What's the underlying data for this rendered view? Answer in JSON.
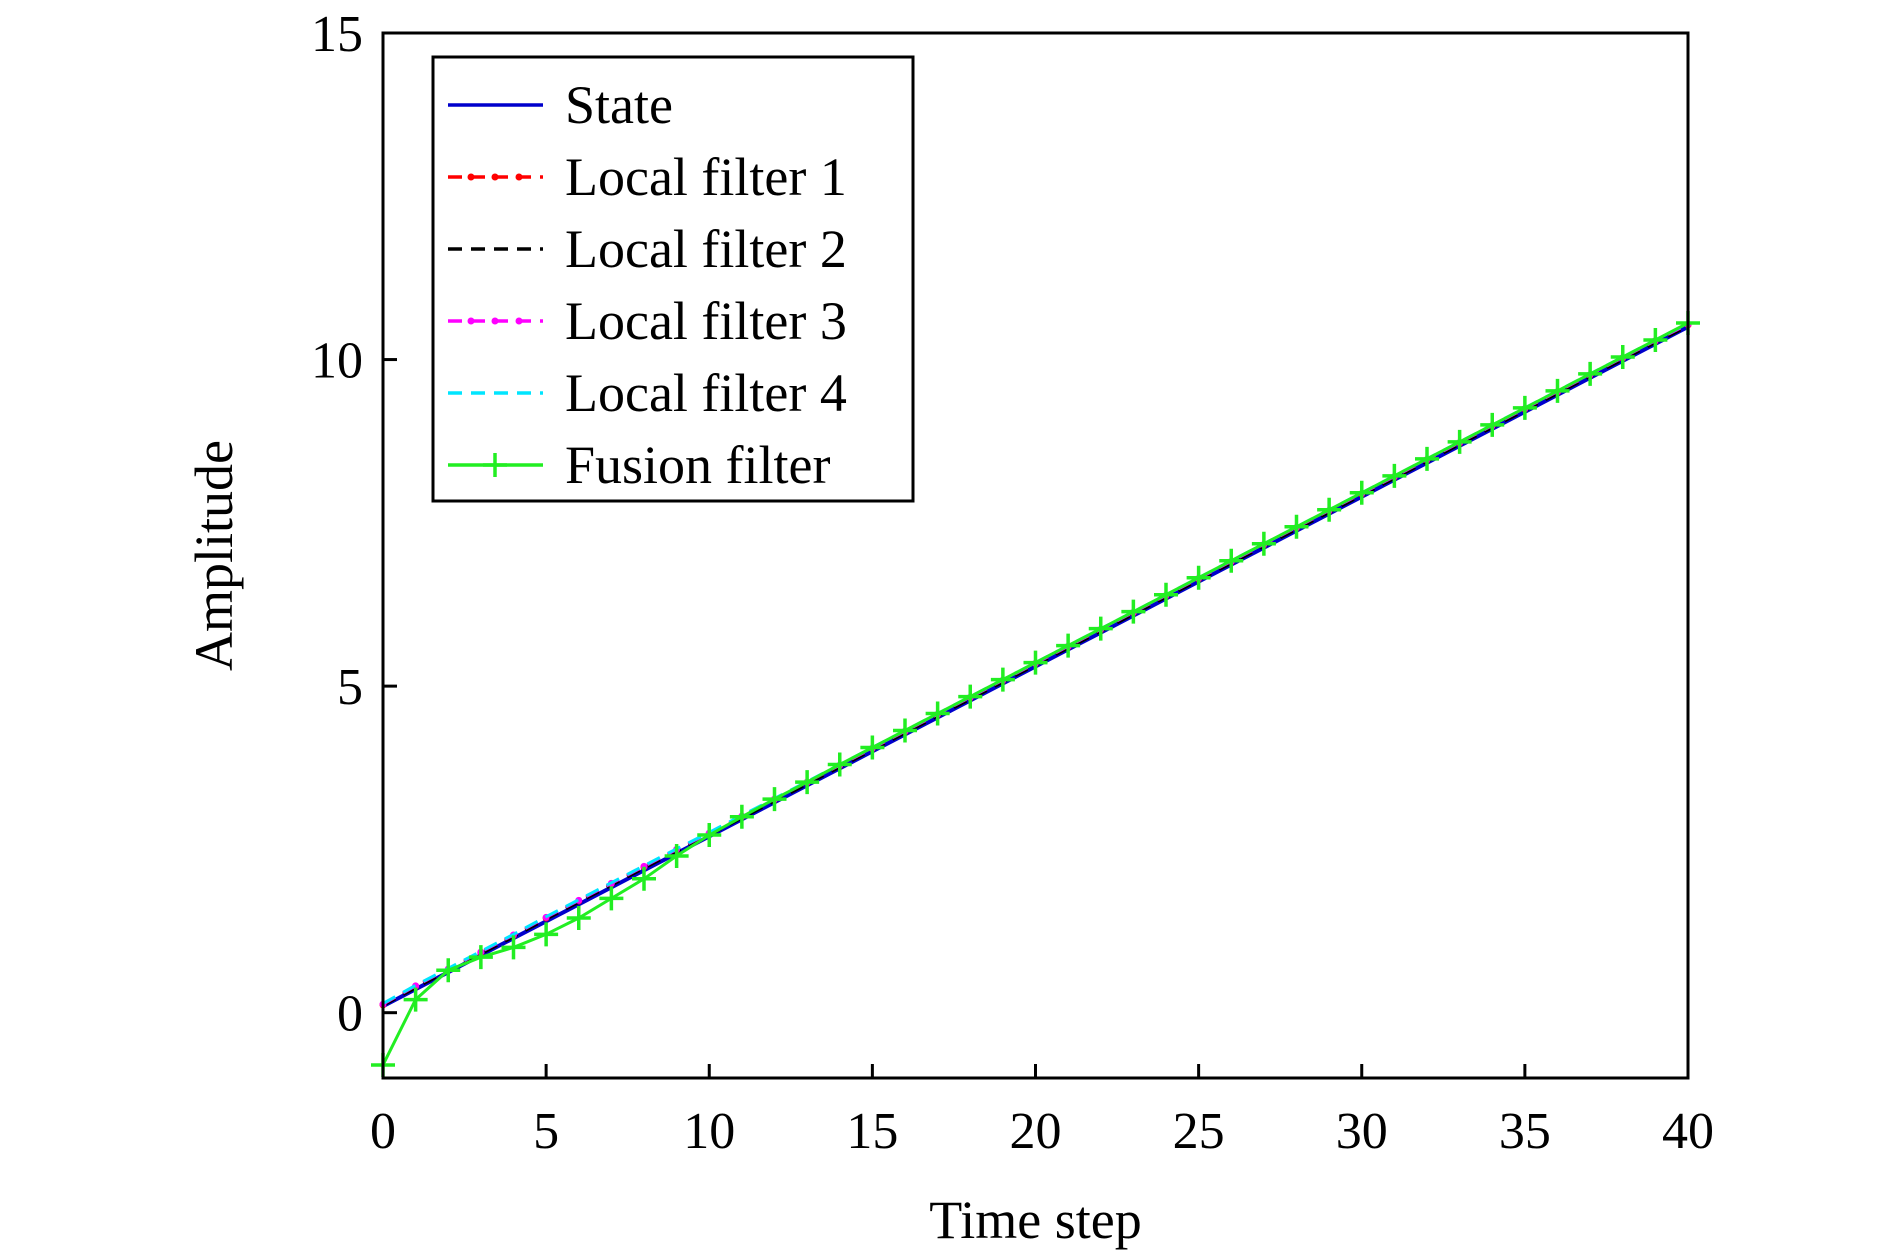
{
  "chart_data": {
    "type": "line",
    "xlabel": "Time step",
    "ylabel": "Amplitude",
    "xlim": [
      0,
      40
    ],
    "ylim": [
      -1,
      15
    ],
    "xticks": [
      0,
      5,
      10,
      15,
      20,
      25,
      30,
      35,
      40
    ],
    "yticks": [
      0,
      5,
      10,
      15
    ],
    "grid": false,
    "legend_position": "top-left",
    "x": [
      0,
      1,
      2,
      3,
      4,
      5,
      6,
      7,
      8,
      9,
      10,
      11,
      12,
      13,
      14,
      15,
      16,
      17,
      18,
      19,
      20,
      21,
      22,
      23,
      24,
      25,
      26,
      27,
      28,
      29,
      30,
      31,
      32,
      33,
      34,
      35,
      36,
      37,
      38,
      39,
      40
    ],
    "series": [
      {
        "name": "State",
        "color": "#0000cc",
        "style": "solid",
        "marker": "none",
        "values": [
          0.1,
          0.36,
          0.62,
          0.88,
          1.14,
          1.4,
          1.66,
          1.92,
          2.18,
          2.44,
          2.7,
          2.96,
          3.22,
          3.48,
          3.74,
          4.0,
          4.26,
          4.52,
          4.78,
          5.04,
          5.3,
          5.56,
          5.82,
          6.08,
          6.34,
          6.6,
          6.86,
          7.12,
          7.38,
          7.64,
          7.9,
          8.16,
          8.42,
          8.68,
          8.94,
          9.2,
          9.46,
          9.72,
          9.98,
          10.24,
          10.5
        ]
      },
      {
        "name": "Local filter 1",
        "color": "#ff0000",
        "style": "dashed",
        "marker": "dot",
        "values": [
          0.12,
          0.4,
          0.66,
          0.92,
          1.18,
          1.45,
          1.71,
          1.97,
          2.23,
          2.49,
          2.74,
          3.0,
          3.26,
          3.52,
          3.78,
          4.04,
          4.3,
          4.56,
          4.82,
          5.08,
          5.34,
          5.6,
          5.86,
          6.12,
          6.38,
          6.64,
          6.9,
          7.16,
          7.42,
          7.68,
          7.94,
          8.2,
          8.46,
          8.72,
          8.98,
          9.24,
          9.5,
          9.76,
          10.02,
          10.28,
          10.53
        ]
      },
      {
        "name": "Local filter 2",
        "color": "#000000",
        "style": "dashed",
        "marker": "none",
        "values": [
          0.11,
          0.38,
          0.64,
          0.9,
          1.16,
          1.43,
          1.69,
          1.95,
          2.21,
          2.47,
          2.72,
          2.98,
          3.24,
          3.5,
          3.76,
          4.02,
          4.28,
          4.54,
          4.8,
          5.06,
          5.32,
          5.58,
          5.84,
          6.1,
          6.36,
          6.62,
          6.88,
          7.14,
          7.4,
          7.66,
          7.92,
          8.18,
          8.44,
          8.7,
          8.96,
          9.22,
          9.48,
          9.74,
          10.0,
          10.26,
          10.51
        ]
      },
      {
        "name": "Local filter 3",
        "color": "#ff00ff",
        "style": "dashed",
        "marker": "dot",
        "values": [
          0.13,
          0.41,
          0.67,
          0.93,
          1.19,
          1.46,
          1.72,
          1.98,
          2.24,
          2.5,
          2.75,
          3.01,
          3.27,
          3.53,
          3.79,
          4.05,
          4.31,
          4.57,
          4.83,
          5.09,
          5.35,
          5.61,
          5.87,
          6.13,
          6.39,
          6.65,
          6.91,
          7.17,
          7.43,
          7.69,
          7.95,
          8.21,
          8.47,
          8.73,
          8.99,
          9.25,
          9.51,
          9.77,
          10.03,
          10.29,
          10.54
        ]
      },
      {
        "name": "Local filter 4",
        "color": "#00e5ff",
        "style": "dashed",
        "marker": "none",
        "values": [
          0.14,
          0.42,
          0.68,
          0.94,
          1.2,
          1.47,
          1.73,
          1.99,
          2.25,
          2.51,
          2.76,
          3.02,
          3.28,
          3.54,
          3.8,
          4.06,
          4.32,
          4.58,
          4.84,
          5.1,
          5.36,
          5.62,
          5.88,
          6.14,
          6.4,
          6.66,
          6.92,
          7.18,
          7.44,
          7.7,
          7.96,
          8.22,
          8.48,
          8.74,
          9.0,
          9.26,
          9.52,
          9.78,
          10.04,
          10.3,
          10.55
        ]
      },
      {
        "name": "Fusion filter",
        "color": "#22ee22",
        "style": "solid",
        "marker": "plus",
        "values": [
          -0.8,
          0.2,
          0.65,
          0.85,
          1.0,
          1.2,
          1.45,
          1.75,
          2.05,
          2.4,
          2.72,
          3.0,
          3.27,
          3.53,
          3.8,
          4.06,
          4.32,
          4.58,
          4.84,
          5.1,
          5.36,
          5.62,
          5.88,
          6.14,
          6.4,
          6.66,
          6.92,
          7.18,
          7.44,
          7.7,
          7.96,
          8.22,
          8.48,
          8.74,
          9.0,
          9.26,
          9.52,
          9.78,
          10.04,
          10.3,
          10.56
        ]
      }
    ]
  }
}
